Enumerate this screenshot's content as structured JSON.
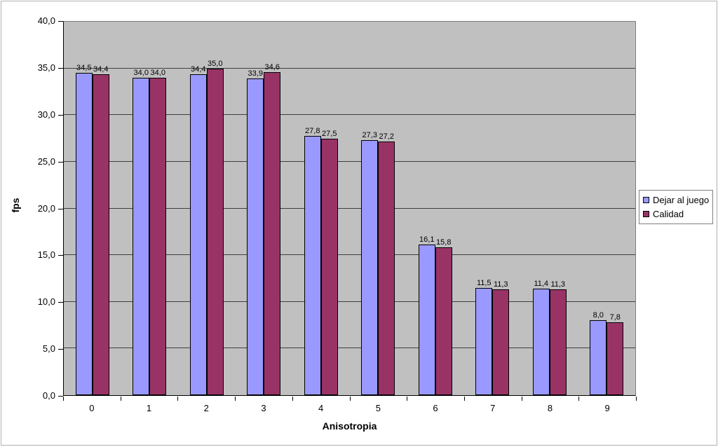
{
  "chart_data": {
    "type": "bar",
    "title": "",
    "xlabel": "Anisotropia",
    "ylabel": "fps",
    "categories": [
      "0",
      "1",
      "2",
      "3",
      "4",
      "5",
      "6",
      "7",
      "8",
      "9"
    ],
    "series": [
      {
        "name": "Dejar al juego",
        "color": "#9999ff",
        "values": [
          34.5,
          34.0,
          34.4,
          33.9,
          27.8,
          27.3,
          16.1,
          11.5,
          11.4,
          8.0
        ],
        "labels": [
          "34,5",
          "34,0",
          "34,4",
          "33,9",
          "27,8",
          "27,3",
          "16,1",
          "11,5",
          "11,4",
          "8,0"
        ]
      },
      {
        "name": "Calidad",
        "color": "#993366",
        "values": [
          34.4,
          34.0,
          35.0,
          34.6,
          27.5,
          27.2,
          15.8,
          11.3,
          11.3,
          7.8
        ],
        "labels": [
          "34,4",
          "34,0",
          "35,0",
          "34,6",
          "27,5",
          "27,2",
          "15,8",
          "11,3",
          "11,3",
          "7,8"
        ]
      }
    ],
    "ylim": [
      0,
      40
    ],
    "ytick_step": 5,
    "ytick_labels": [
      "0,0",
      "5,0",
      "10,0",
      "15,0",
      "20,0",
      "25,0",
      "30,0",
      "35,0",
      "40,0"
    ],
    "grid": true,
    "legend_position": "right",
    "plot_background": "#c0c0c0"
  }
}
